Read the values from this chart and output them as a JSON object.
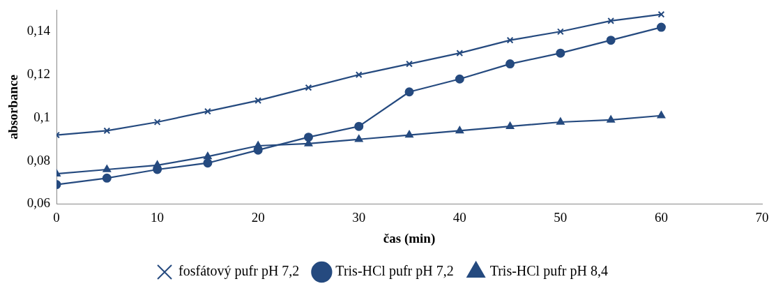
{
  "chart_data": {
    "type": "line",
    "xlabel": "čas (min)",
    "ylabel": "absorbance",
    "x": [
      0,
      5,
      10,
      15,
      20,
      25,
      30,
      35,
      40,
      45,
      50,
      55,
      60
    ],
    "series": [
      {
        "name": "fosfátový pufr pH 7,2",
        "color": "#254a7f",
        "marker": "cross",
        "values": [
          0.092,
          0.094,
          0.098,
          0.103,
          0.108,
          0.114,
          0.12,
          0.125,
          0.13,
          0.136,
          0.14,
          0.145,
          0.148
        ]
      },
      {
        "name": "Tris-HCl pufr pH 7,2",
        "color": "#254a7f",
        "marker": "circle",
        "values": [
          0.069,
          0.072,
          0.076,
          0.079,
          0.085,
          0.091,
          0.096,
          0.112,
          0.118,
          0.125,
          0.13,
          0.136,
          0.142
        ]
      },
      {
        "name": "Tris-HCl pufr pH 8,4",
        "color": "#254a7f",
        "marker": "triangle",
        "values": [
          0.074,
          0.076,
          0.078,
          0.082,
          0.087,
          0.088,
          0.09,
          0.092,
          0.094,
          0.096,
          0.098,
          0.099,
          0.101
        ]
      }
    ],
    "xlim": [
      0,
      70
    ],
    "xticks": [
      0,
      10,
      20,
      30,
      40,
      50,
      60,
      70
    ],
    "ylim": [
      0.06,
      0.15
    ],
    "yticks": [
      {
        "value": 0.06,
        "label": "0,06"
      },
      {
        "value": 0.08,
        "label": "0,08"
      },
      {
        "value": 0.1,
        "label": "0,1"
      },
      {
        "value": 0.12,
        "label": "0,12"
      },
      {
        "value": 0.14,
        "label": "0,14"
      }
    ],
    "grid": false,
    "legend": "bottom",
    "line_style": "solid"
  }
}
